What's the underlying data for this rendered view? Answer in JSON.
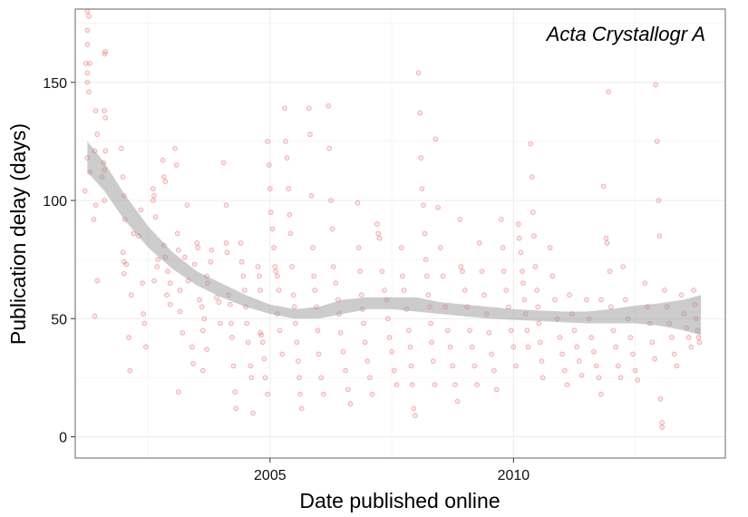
{
  "chart_data": {
    "type": "scatter",
    "title": "",
    "annotation": "Acta Crystallogr A",
    "xlabel": "Date published online",
    "ylabel": "Publication delay (days)",
    "xlim": [
      2001.0,
      2014.35
    ],
    "ylim": [
      -9,
      181
    ],
    "xticks": [
      2005,
      2010
    ],
    "xtick_labels": [
      "2005",
      "2010"
    ],
    "yticks": [
      0,
      50,
      100,
      150
    ],
    "ytick_labels": [
      "0",
      "50",
      "100",
      "150"
    ],
    "grid": true,
    "legend": "none",
    "point_color": "#e8383b",
    "smooth_color": "#999999",
    "points": [
      [
        2001.25,
        180
      ],
      [
        2001.25,
        172
      ],
      [
        2001.28,
        178
      ],
      [
        2001.25,
        166
      ],
      [
        2001.22,
        158
      ],
      [
        2001.3,
        158
      ],
      [
        2001.25,
        154
      ],
      [
        2001.25,
        150
      ],
      [
        2001.28,
        146
      ],
      [
        2001.25,
        118
      ],
      [
        2001.3,
        112
      ],
      [
        2001.2,
        104
      ],
      [
        2001.42,
        138
      ],
      [
        2001.45,
        128
      ],
      [
        2001.4,
        121
      ],
      [
        2001.42,
        98
      ],
      [
        2001.38,
        92
      ],
      [
        2001.45,
        66
      ],
      [
        2001.4,
        51
      ],
      [
        2001.6,
        162
      ],
      [
        2001.62,
        163
      ],
      [
        2001.6,
        138
      ],
      [
        2001.62,
        135
      ],
      [
        2001.58,
        116
      ],
      [
        2001.62,
        121
      ],
      [
        2001.6,
        113
      ],
      [
        2001.55,
        110
      ],
      [
        2001.6,
        100
      ],
      [
        2001.95,
        122
      ],
      [
        2001.98,
        110
      ],
      [
        2002.0,
        102
      ],
      [
        2002.02,
        92
      ],
      [
        2001.98,
        78
      ],
      [
        2002.0,
        74
      ],
      [
        2002.05,
        73
      ],
      [
        2002.0,
        69
      ],
      [
        2002.1,
        42
      ],
      [
        2002.12,
        28
      ],
      [
        2002.15,
        60
      ],
      [
        2002.2,
        86
      ],
      [
        2002.35,
        96
      ],
      [
        2002.38,
        65
      ],
      [
        2002.4,
        52
      ],
      [
        2002.42,
        48
      ],
      [
        2002.45,
        38
      ],
      [
        2002.3,
        85
      ],
      [
        2002.6,
        105
      ],
      [
        2002.62,
        102
      ],
      [
        2002.6,
        100
      ],
      [
        2002.65,
        93
      ],
      [
        2002.62,
        66
      ],
      [
        2002.7,
        75
      ],
      [
        2002.68,
        72
      ],
      [
        2002.8,
        117
      ],
      [
        2002.82,
        110
      ],
      [
        2002.85,
        108
      ],
      [
        2002.82,
        81
      ],
      [
        2002.85,
        76
      ],
      [
        2002.9,
        70
      ],
      [
        2002.95,
        65
      ],
      [
        2002.88,
        60
      ],
      [
        2002.95,
        56
      ],
      [
        2003.05,
        122
      ],
      [
        2003.08,
        115
      ],
      [
        2003.1,
        86
      ],
      [
        2003.12,
        79
      ],
      [
        2003.15,
        62
      ],
      [
        2003.15,
        53
      ],
      [
        2003.2,
        44
      ],
      [
        2003.12,
        19
      ],
      [
        2003.3,
        98
      ],
      [
        2003.25,
        76
      ],
      [
        2003.32,
        66
      ],
      [
        2003.4,
        38
      ],
      [
        2003.42,
        31
      ],
      [
        2003.45,
        73
      ],
      [
        2003.5,
        82
      ],
      [
        2003.52,
        80
      ],
      [
        2003.55,
        58
      ],
      [
        2003.6,
        55
      ],
      [
        2003.62,
        45
      ],
      [
        2003.65,
        50
      ],
      [
        2003.7,
        68
      ],
      [
        2003.72,
        65
      ],
      [
        2003.78,
        74
      ],
      [
        2003.8,
        79
      ],
      [
        2003.9,
        59
      ],
      [
        2003.95,
        57
      ],
      [
        2003.98,
        48
      ],
      [
        2003.7,
        37
      ],
      [
        2003.62,
        28
      ],
      [
        2004.05,
        116
      ],
      [
        2004.1,
        98
      ],
      [
        2004.1,
        82
      ],
      [
        2004.12,
        78
      ],
      [
        2004.15,
        60
      ],
      [
        2004.18,
        56
      ],
      [
        2004.2,
        48
      ],
      [
        2004.22,
        42
      ],
      [
        2004.25,
        30
      ],
      [
        2004.28,
        19
      ],
      [
        2004.3,
        12
      ],
      [
        2004.4,
        82
      ],
      [
        2004.42,
        74
      ],
      [
        2004.45,
        68
      ],
      [
        2004.48,
        62
      ],
      [
        2004.5,
        55
      ],
      [
        2004.52,
        48
      ],
      [
        2004.55,
        40
      ],
      [
        2004.6,
        30
      ],
      [
        2004.62,
        25
      ],
      [
        2004.65,
        10
      ],
      [
        2004.75,
        72
      ],
      [
        2004.78,
        68
      ],
      [
        2004.8,
        62
      ],
      [
        2004.8,
        44
      ],
      [
        2004.82,
        43
      ],
      [
        2004.85,
        40
      ],
      [
        2004.88,
        33
      ],
      [
        2004.9,
        25
      ],
      [
        2004.95,
        18
      ],
      [
        2004.95,
        125
      ],
      [
        2004.98,
        115
      ],
      [
        2005.0,
        105
      ],
      [
        2005.02,
        95
      ],
      [
        2005.05,
        88
      ],
      [
        2005.08,
        80
      ],
      [
        2005.1,
        72
      ],
      [
        2005.12,
        70
      ],
      [
        2005.15,
        68
      ],
      [
        2005.18,
        62
      ],
      [
        2005.15,
        52
      ],
      [
        2005.2,
        45
      ],
      [
        2005.25,
        35
      ],
      [
        2005.3,
        139
      ],
      [
        2005.32,
        125
      ],
      [
        2005.35,
        118
      ],
      [
        2005.38,
        105
      ],
      [
        2005.4,
        94
      ],
      [
        2005.42,
        86
      ],
      [
        2005.45,
        72
      ],
      [
        2005.48,
        60
      ],
      [
        2005.5,
        55
      ],
      [
        2005.52,
        48
      ],
      [
        2005.55,
        40
      ],
      [
        2005.58,
        32
      ],
      [
        2005.6,
        25
      ],
      [
        2005.62,
        18
      ],
      [
        2005.65,
        12
      ],
      [
        2005.8,
        139
      ],
      [
        2005.82,
        128
      ],
      [
        2005.85,
        102
      ],
      [
        2005.88,
        80
      ],
      [
        2005.9,
        68
      ],
      [
        2005.92,
        62
      ],
      [
        2005.95,
        55
      ],
      [
        2005.98,
        45
      ],
      [
        2006.0,
        35
      ],
      [
        2006.05,
        25
      ],
      [
        2006.1,
        18
      ],
      [
        2006.2,
        140
      ],
      [
        2006.22,
        122
      ],
      [
        2006.25,
        100
      ],
      [
        2006.28,
        88
      ],
      [
        2006.3,
        72
      ],
      [
        2006.35,
        65
      ],
      [
        2006.4,
        58
      ],
      [
        2006.42,
        52
      ],
      [
        2006.45,
        44
      ],
      [
        2006.5,
        36
      ],
      [
        2006.55,
        28
      ],
      [
        2006.6,
        20
      ],
      [
        2006.65,
        14
      ],
      [
        2006.8,
        99
      ],
      [
        2006.82,
        80
      ],
      [
        2006.85,
        70
      ],
      [
        2006.88,
        60
      ],
      [
        2006.9,
        54
      ],
      [
        2006.92,
        48
      ],
      [
        2006.95,
        40
      ],
      [
        2007.0,
        32
      ],
      [
        2007.05,
        25
      ],
      [
        2007.1,
        18
      ],
      [
        2007.2,
        90
      ],
      [
        2007.22,
        86
      ],
      [
        2007.25,
        84
      ],
      [
        2007.3,
        70
      ],
      [
        2007.35,
        62
      ],
      [
        2007.4,
        58
      ],
      [
        2007.42,
        50
      ],
      [
        2007.45,
        42
      ],
      [
        2007.5,
        36
      ],
      [
        2007.55,
        28
      ],
      [
        2007.6,
        22
      ],
      [
        2007.7,
        80
      ],
      [
        2007.72,
        68
      ],
      [
        2007.75,
        62
      ],
      [
        2007.8,
        54
      ],
      [
        2007.85,
        45
      ],
      [
        2007.88,
        38
      ],
      [
        2007.9,
        30
      ],
      [
        2007.92,
        22
      ],
      [
        2007.95,
        12
      ],
      [
        2007.98,
        9
      ],
      [
        2008.05,
        154
      ],
      [
        2008.08,
        137
      ],
      [
        2008.1,
        118
      ],
      [
        2008.12,
        105
      ],
      [
        2008.15,
        98
      ],
      [
        2008.18,
        86
      ],
      [
        2008.2,
        75
      ],
      [
        2008.22,
        68
      ],
      [
        2008.25,
        60
      ],
      [
        2008.28,
        55
      ],
      [
        2008.3,
        48
      ],
      [
        2008.32,
        40
      ],
      [
        2008.35,
        32
      ],
      [
        2008.38,
        22
      ],
      [
        2008.4,
        126
      ],
      [
        2008.45,
        97
      ],
      [
        2008.5,
        80
      ],
      [
        2008.55,
        68
      ],
      [
        2008.6,
        55
      ],
      [
        2008.65,
        45
      ],
      [
        2008.7,
        38
      ],
      [
        2008.75,
        30
      ],
      [
        2008.8,
        22
      ],
      [
        2008.85,
        15
      ],
      [
        2008.9,
        92
      ],
      [
        2008.92,
        72
      ],
      [
        2008.95,
        70
      ],
      [
        2009.0,
        62
      ],
      [
        2009.05,
        55
      ],
      [
        2009.1,
        45
      ],
      [
        2009.15,
        38
      ],
      [
        2009.2,
        30
      ],
      [
        2009.25,
        22
      ],
      [
        2009.3,
        82
      ],
      [
        2009.35,
        70
      ],
      [
        2009.4,
        60
      ],
      [
        2009.45,
        52
      ],
      [
        2009.5,
        44
      ],
      [
        2009.55,
        35
      ],
      [
        2009.6,
        28
      ],
      [
        2009.65,
        20
      ],
      [
        2009.75,
        92
      ],
      [
        2009.78,
        80
      ],
      [
        2009.8,
        70
      ],
      [
        2009.85,
        62
      ],
      [
        2009.9,
        55
      ],
      [
        2009.95,
        45
      ],
      [
        2010.0,
        38
      ],
      [
        2010.05,
        30
      ],
      [
        2010.1,
        90
      ],
      [
        2010.12,
        84
      ],
      [
        2010.15,
        78
      ],
      [
        2010.18,
        70
      ],
      [
        2010.2,
        65
      ],
      [
        2010.22,
        58
      ],
      [
        2010.25,
        52
      ],
      [
        2010.28,
        45
      ],
      [
        2010.3,
        38
      ],
      [
        2010.35,
        124
      ],
      [
        2010.38,
        110
      ],
      [
        2010.4,
        95
      ],
      [
        2010.42,
        85
      ],
      [
        2010.45,
        72
      ],
      [
        2010.48,
        62
      ],
      [
        2010.5,
        55
      ],
      [
        2010.52,
        48
      ],
      [
        2010.55,
        40
      ],
      [
        2010.58,
        32
      ],
      [
        2010.6,
        25
      ],
      [
        2010.75,
        80
      ],
      [
        2010.8,
        68
      ],
      [
        2010.85,
        58
      ],
      [
        2010.9,
        50
      ],
      [
        2010.95,
        42
      ],
      [
        2011.0,
        35
      ],
      [
        2011.05,
        28
      ],
      [
        2011.1,
        22
      ],
      [
        2011.15,
        60
      ],
      [
        2011.2,
        52
      ],
      [
        2011.25,
        45
      ],
      [
        2011.3,
        38
      ],
      [
        2011.35,
        32
      ],
      [
        2011.4,
        26
      ],
      [
        2011.5,
        58
      ],
      [
        2011.55,
        50
      ],
      [
        2011.6,
        42
      ],
      [
        2011.65,
        36
      ],
      [
        2011.7,
        30
      ],
      [
        2011.75,
        25
      ],
      [
        2011.8,
        18
      ],
      [
        2011.8,
        58
      ],
      [
        2011.85,
        106
      ],
      [
        2011.9,
        84
      ],
      [
        2011.92,
        82
      ],
      [
        2011.95,
        146
      ],
      [
        2011.98,
        70
      ],
      [
        2012.0,
        55
      ],
      [
        2012.05,
        45
      ],
      [
        2012.1,
        38
      ],
      [
        2012.15,
        30
      ],
      [
        2012.2,
        25
      ],
      [
        2012.25,
        72
      ],
      [
        2012.3,
        58
      ],
      [
        2012.35,
        50
      ],
      [
        2012.4,
        42
      ],
      [
        2012.45,
        35
      ],
      [
        2012.5,
        28
      ],
      [
        2012.55,
        24
      ],
      [
        2012.7,
        65
      ],
      [
        2012.75,
        55
      ],
      [
        2012.8,
        48
      ],
      [
        2012.85,
        40
      ],
      [
        2012.9,
        33
      ],
      [
        2012.92,
        149
      ],
      [
        2012.95,
        125
      ],
      [
        2012.98,
        100
      ],
      [
        2013.0,
        85
      ],
      [
        2013.02,
        16
      ],
      [
        2013.05,
        6
      ],
      [
        2013.05,
        4
      ],
      [
        2013.1,
        62
      ],
      [
        2013.15,
        55
      ],
      [
        2013.2,
        48
      ],
      [
        2013.25,
        42
      ],
      [
        2013.3,
        35
      ],
      [
        2013.35,
        30
      ],
      [
        2013.45,
        60
      ],
      [
        2013.5,
        52
      ],
      [
        2013.55,
        46
      ],
      [
        2013.6,
        42
      ],
      [
        2013.65,
        38
      ],
      [
        2013.7,
        62
      ],
      [
        2013.72,
        56
      ],
      [
        2013.75,
        50
      ],
      [
        2013.78,
        45
      ],
      [
        2013.8,
        42
      ],
      [
        2013.82,
        40
      ]
    ],
    "smooth": {
      "x": [
        2001.25,
        2001.6,
        2002.0,
        2002.5,
        2003.0,
        2003.5,
        2004.0,
        2004.5,
        2005.0,
        2005.5,
        2006.0,
        2006.5,
        2007.0,
        2007.5,
        2008.0,
        2008.5,
        2009.0,
        2009.5,
        2010.0,
        2010.5,
        2011.0,
        2011.5,
        2012.0,
        2012.5,
        2013.0,
        2013.5,
        2013.85
      ],
      "upper": [
        125,
        116,
        103,
        89,
        78,
        70,
        65,
        60,
        56,
        54,
        55,
        58,
        59,
        59,
        59,
        57,
        56,
        55,
        54,
        53.5,
        53,
        53,
        54,
        55.5,
        56.5,
        58,
        60
      ],
      "lower": [
        112,
        104,
        92,
        80,
        71,
        64,
        59,
        55,
        52,
        50,
        50,
        52,
        54,
        54,
        53,
        52,
        51,
        50,
        49.5,
        49,
        48.5,
        48,
        48,
        48,
        47,
        45,
        43
      ]
    }
  }
}
